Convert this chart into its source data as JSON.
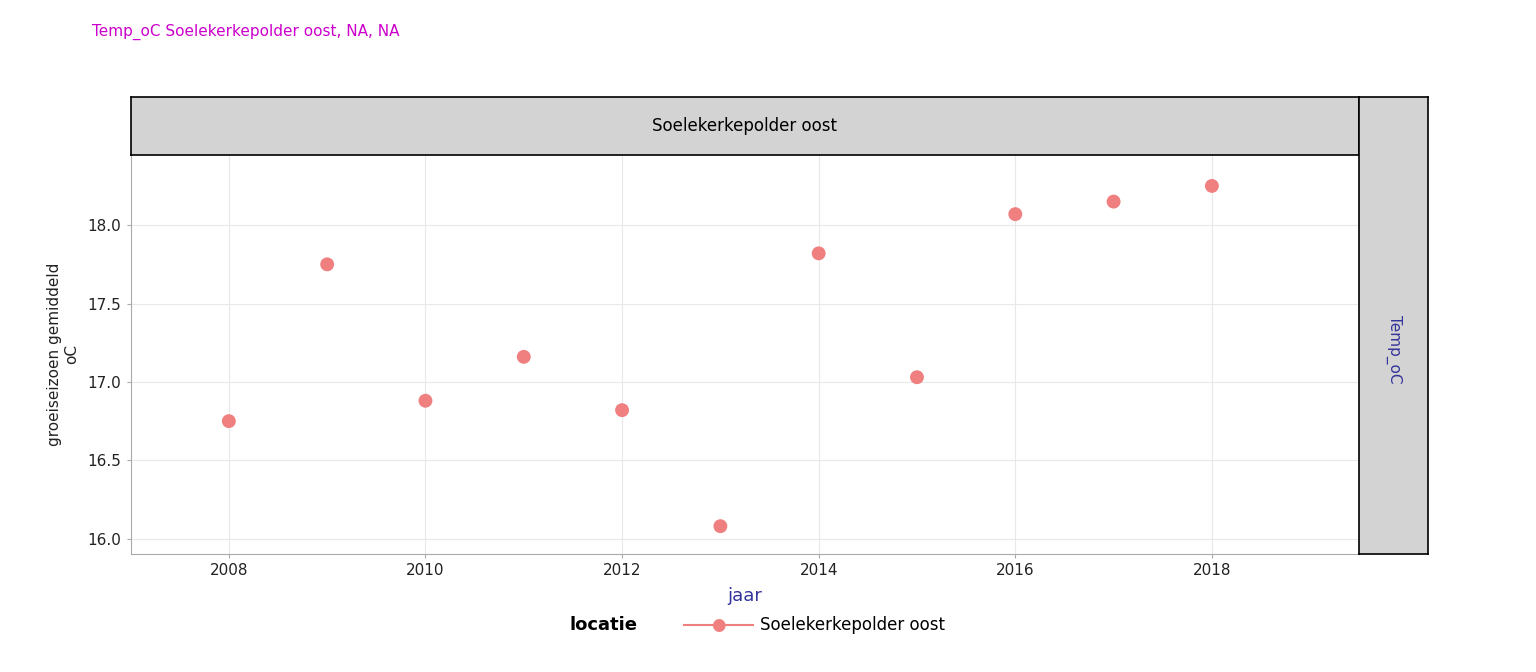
{
  "title": "Temp_oC Soelekerkepolder oost, NA, NA",
  "title_color": "#CC00CC",
  "facet_label": "Soelekerkepolder oost",
  "right_strip_label": "Temp_oC",
  "xlabel": "jaar",
  "ylabel": "groeiseizoen gemiddeld\noC",
  "years": [
    2008,
    2009,
    2010,
    2011,
    2012,
    2013,
    2014,
    2015,
    2016,
    2017,
    2018
  ],
  "temps": [
    16.75,
    17.75,
    16.88,
    17.16,
    16.82,
    16.08,
    17.82,
    17.03,
    18.07,
    18.15,
    18.25
  ],
  "point_color": "#F08080",
  "line_color": "#F08080",
  "ylim": [
    15.9,
    18.45
  ],
  "yticks": [
    16.0,
    16.5,
    17.0,
    17.5,
    18.0
  ],
  "xlim": [
    2007.0,
    2019.5
  ],
  "xticks": [
    2008,
    2010,
    2012,
    2014,
    2016,
    2018
  ],
  "legend_label": "Soelekerkepolder oost",
  "legend_title": "locatie",
  "bg_color": "#FFFFFF",
  "panel_bg": "#FFFFFF",
  "grid_color": "#E8E8E8",
  "strip_bg": "#D3D3D3",
  "right_strip_bg": "#D3D3D3",
  "marker_size": 100,
  "marker_style": "o"
}
